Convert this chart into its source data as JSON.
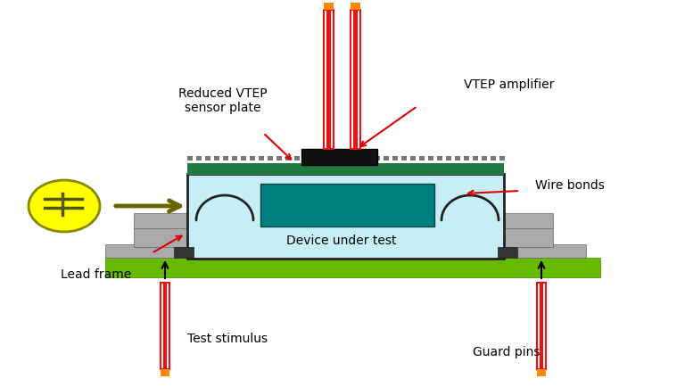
{
  "bg_color": "#ffffff",
  "green_board_color": "#66bb00",
  "light_blue_color": "#c8eef5",
  "teal_color": "#008080",
  "gray_color": "#aaaaaa",
  "dark_gray_color": "#555555",
  "dark_green_sensor": "#1e7a40",
  "yellow_circle_color": "#ffff00",
  "yellow_circle_edge": "#888800",
  "olive_arrow_color": "#666600",
  "red_line_color": "#dd0000",
  "orange_color": "#ff8800",
  "probe_red": "#ee1111",
  "probe_white": "#ffffff",
  "black_color": "#111111",
  "dot_color": "#777777",
  "labels": {
    "reduced_vtep": "Reduced VTEP\nsensor plate",
    "vtep_amplifier": "VTEP amplifier",
    "wire_bonds": "Wire bonds",
    "lead_frame": "Lead frame",
    "device_under_test": "Device under test",
    "test_stimulus": "Test stimulus",
    "guard_pins": "Guard pins"
  },
  "figsize": [
    7.68,
    4.35
  ],
  "dpi": 100
}
